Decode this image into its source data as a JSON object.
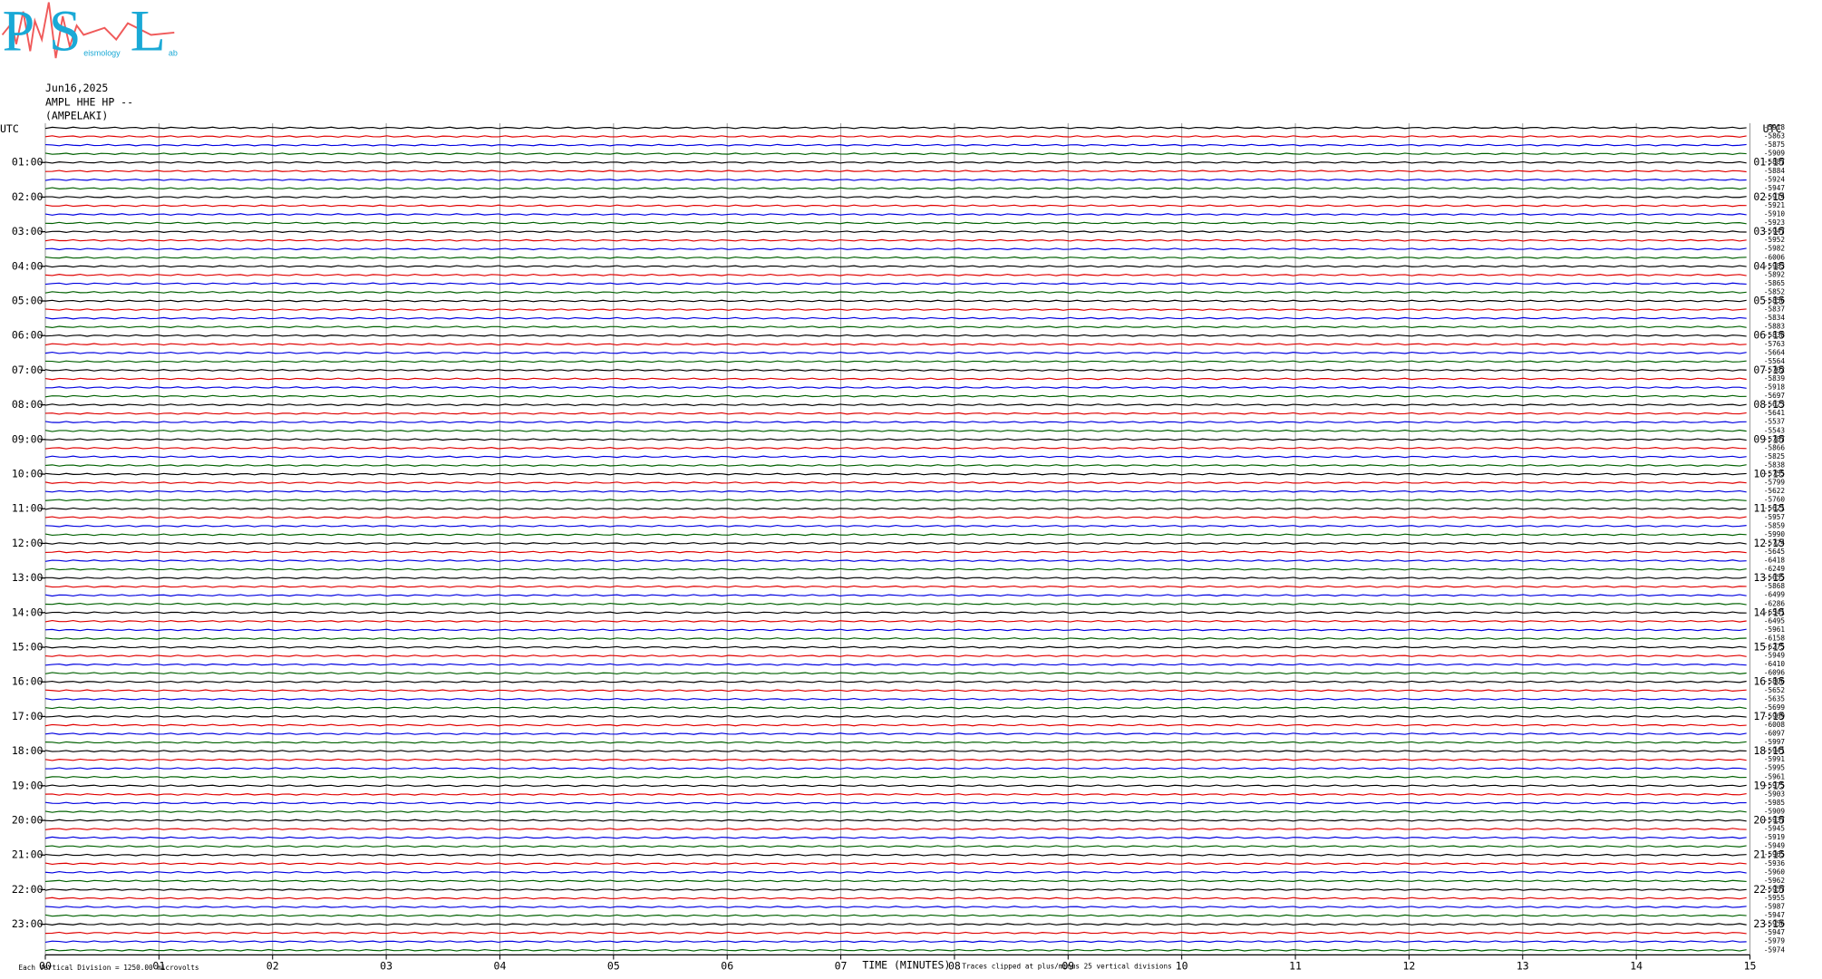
{
  "logo": {
    "letters": [
      "P",
      "S",
      "L"
    ],
    "subtitle_middle": "eismology",
    "subtitle_end": "ab"
  },
  "header": {
    "date": "Jun16,2025",
    "station": "AMPL HHE HP --",
    "location": "(AMPELAKI)"
  },
  "plot": {
    "utc_left": "UTC",
    "utc_right": "UTC",
    "left_labels": [
      "01:00",
      "02:00",
      "03:00",
      "04:00",
      "05:00",
      "06:00",
      "07:00",
      "08:00",
      "09:00",
      "10:00",
      "11:00",
      "12:00",
      "13:00",
      "14:00",
      "15:00",
      "16:00",
      "17:00",
      "18:00",
      "19:00",
      "20:00",
      "21:00",
      "22:00",
      "23:00"
    ],
    "right_labels": [
      "01:15",
      "02:15",
      "03:15",
      "04:15",
      "05:15",
      "06:15",
      "07:15",
      "08:15",
      "09:15",
      "10:15",
      "11:15",
      "12:15",
      "13:15",
      "14:15",
      "15:15",
      "16:15",
      "17:15",
      "18:15",
      "19:15",
      "20:15",
      "21:15",
      "22:15",
      "23:15"
    ],
    "trace_offsets": [
      "-5918",
      "-5863",
      "-5875",
      "-5909",
      "-5887",
      "-5884",
      "-5924",
      "-5947",
      "-5914",
      "-5921",
      "-5910",
      "-5923",
      "-5947",
      "-5952",
      "-5982",
      "-6006",
      "-5983",
      "-5892",
      "-5865",
      "-5852",
      "-5856",
      "-5837",
      "-5834",
      "-5883",
      "-5838",
      "-5763",
      "-5664",
      "-5564",
      "-5702",
      "-5839",
      "-5918",
      "-5697",
      "-5623",
      "-5641",
      "-5537",
      "-5543",
      "-5787",
      "-5866",
      "-5825",
      "-5838",
      "-5755",
      "-5799",
      "-5622",
      "-5760",
      "-5621",
      "-5957",
      "-5859",
      "-5990",
      "-5724",
      "-5645",
      "-6418",
      "-6249",
      "-5655",
      "-5868",
      "-6499",
      "-6286",
      "-6541",
      "-6495",
      "-5961",
      "-6158",
      "-6275",
      "-5949",
      "-6410",
      "-6096",
      "-5806",
      "-5652",
      "-5635",
      "-5699",
      "-5969",
      "-6008",
      "-6097",
      "-5997",
      "-5941",
      "-5991",
      "-5995",
      "-5961",
      "-5975",
      "-5903",
      "-5985",
      "-5909",
      "-5937",
      "-5945",
      "-5919",
      "-5949",
      "-5965",
      "-5936",
      "-5960",
      "-5962",
      "-5957",
      "-5955",
      "-5987",
      "-5947",
      "-5956",
      "-5947",
      "-5979",
      "-5974"
    ],
    "x_tick_labels": [
      "00",
      "01",
      "02",
      "03",
      "04",
      "05",
      "06",
      "07",
      "08",
      "09",
      "10",
      "11",
      "12",
      "13",
      "14",
      "15"
    ],
    "x_axis_title": "TIME (MINUTES)",
    "clip_note": "Traces clipped at plus/minus 25 vertical divisions",
    "scale_note": "Each Vertical Division = 1250.00 microvolts"
  }
}
